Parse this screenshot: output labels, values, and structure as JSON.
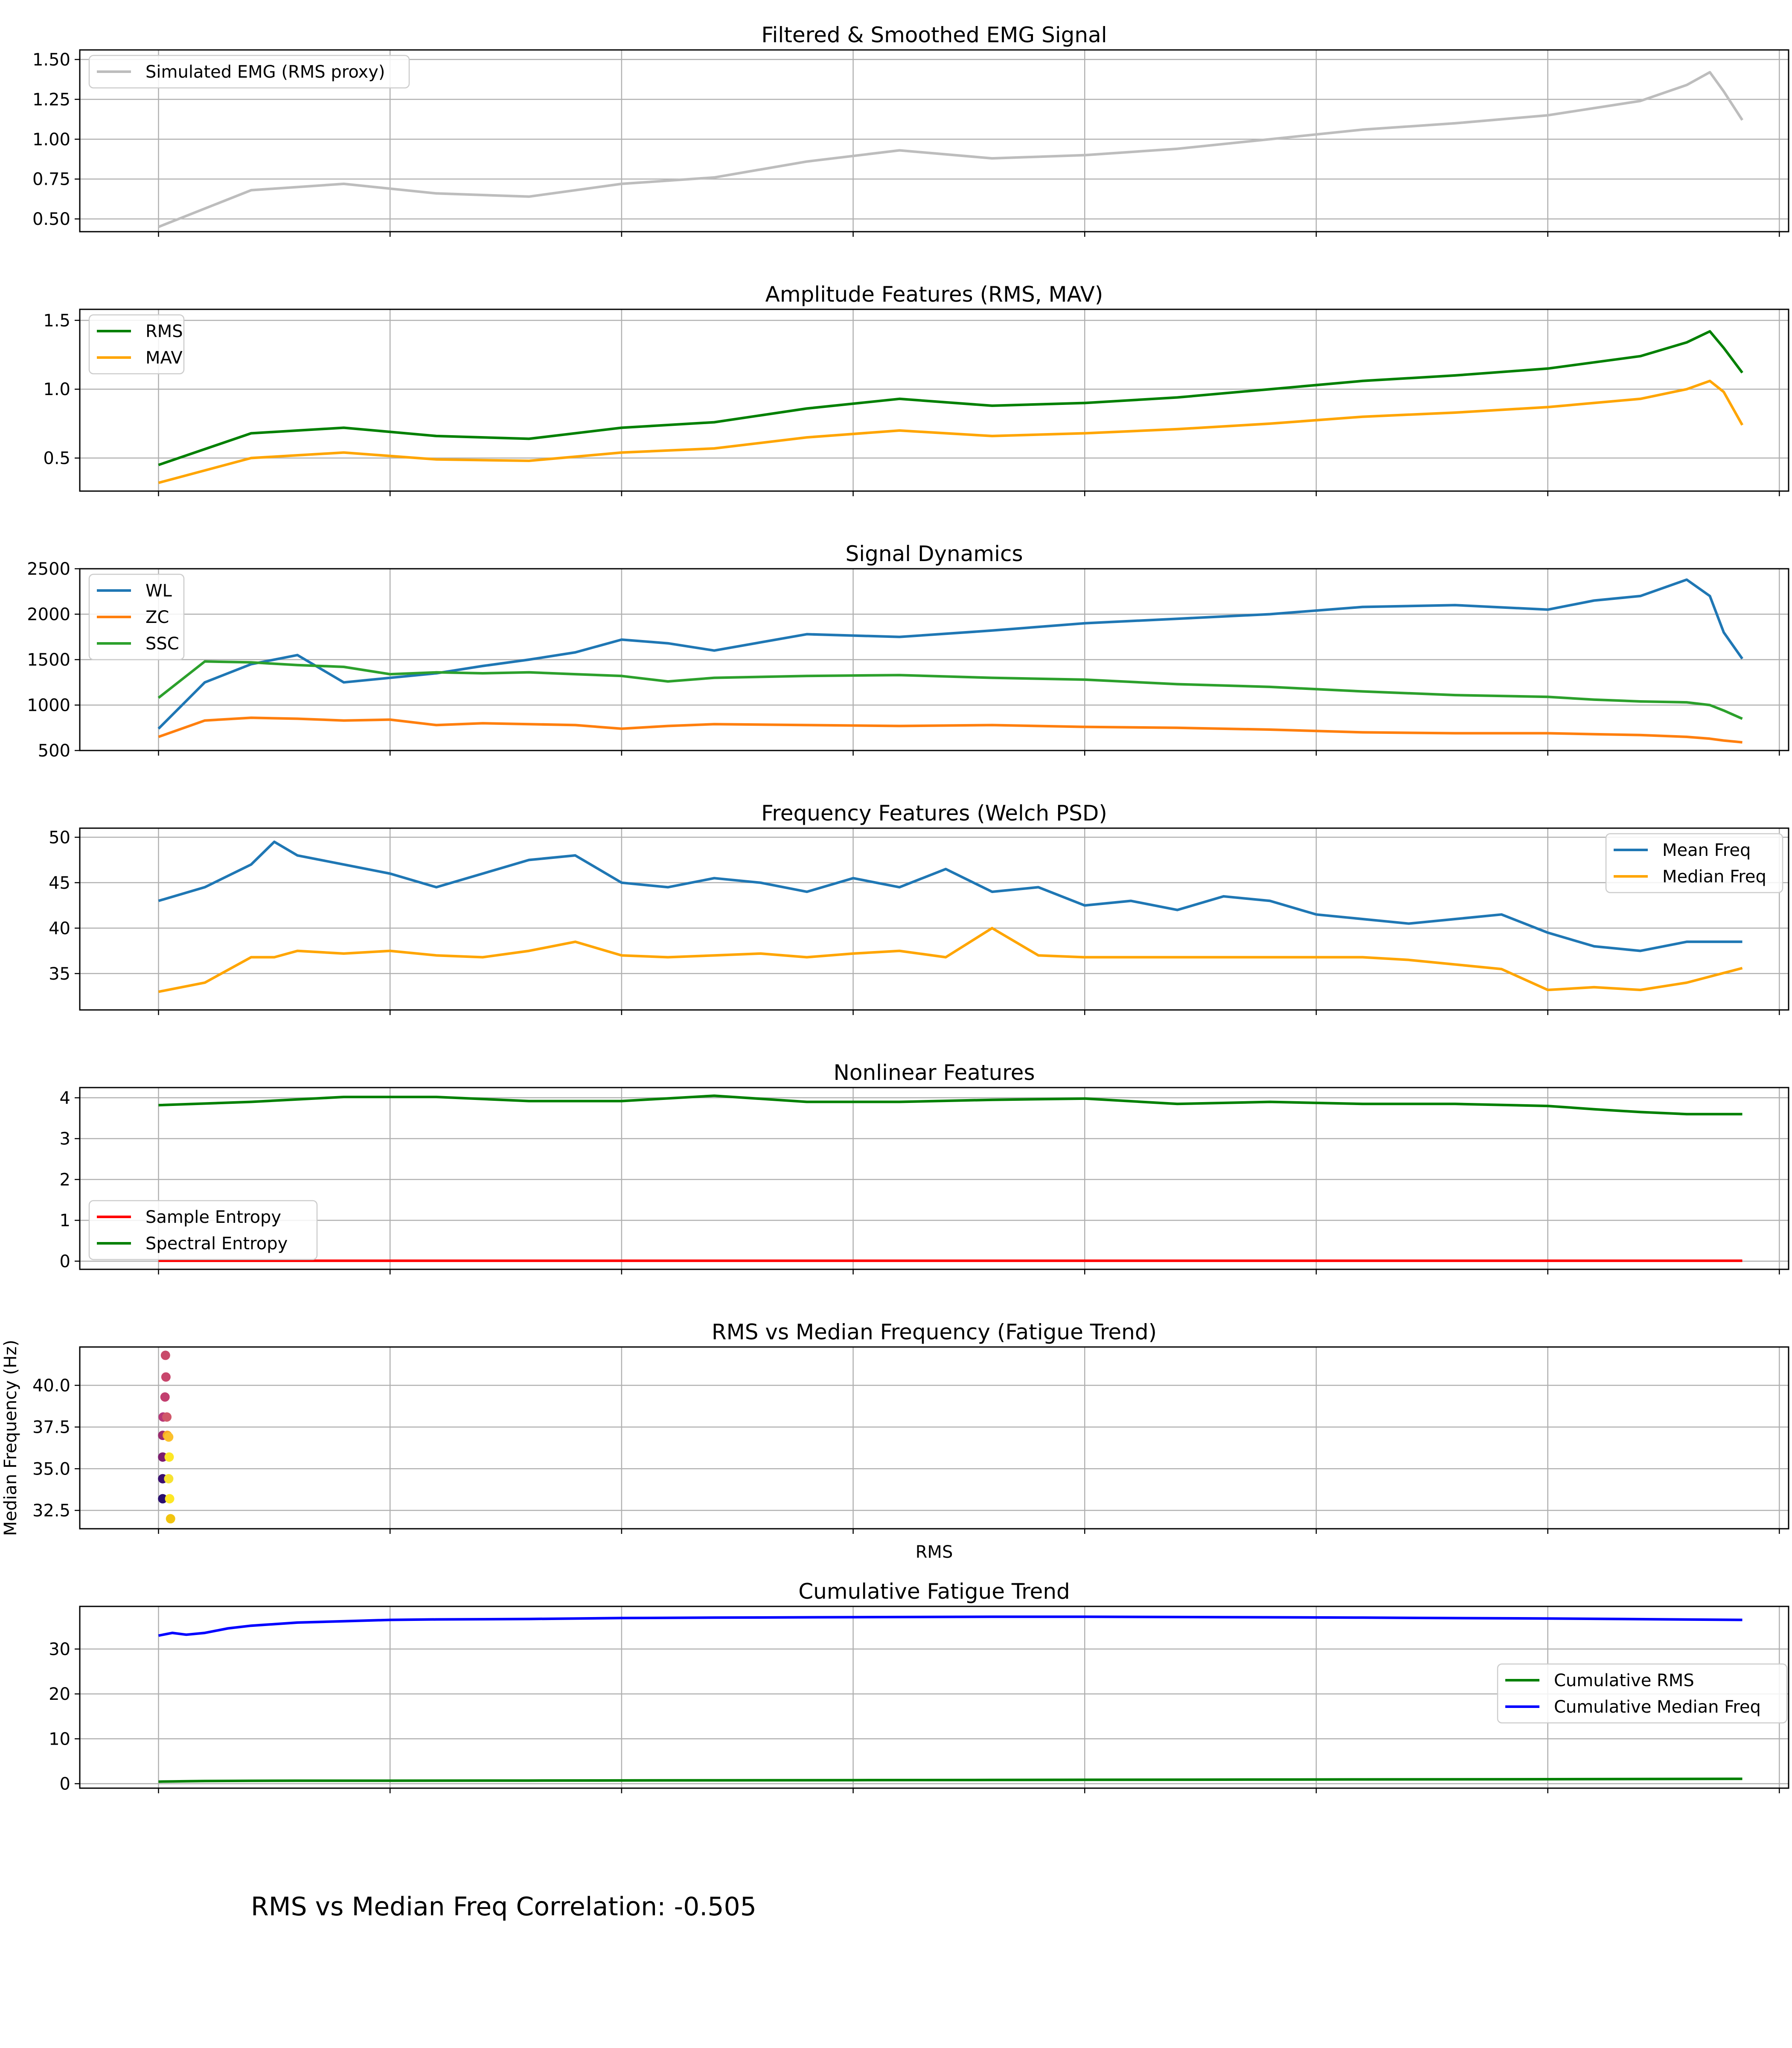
{
  "chart_data": [
    {
      "type": "line",
      "title": "Filtered & Smoothed EMG Signal",
      "ylim": [
        0.42,
        1.56
      ],
      "yticks": [
        0.5,
        0.75,
        1.0,
        1.25,
        1.5
      ],
      "ytick_labels": [
        "0.50",
        "0.75",
        "1.00",
        "1.25",
        "1.50"
      ],
      "xlim": [
        -17,
        352
      ],
      "x_tick_values": [
        0,
        50,
        100,
        150,
        200,
        250,
        300,
        350
      ],
      "x_tick_labels_visible": false,
      "grid": true,
      "legend": "top-left",
      "x": [
        0,
        20,
        40,
        60,
        80,
        100,
        120,
        140,
        160,
        180,
        200,
        220,
        240,
        260,
        280,
        300,
        320,
        330,
        335,
        338,
        342
      ],
      "series": [
        {
          "name": "Simulated EMG (RMS proxy)",
          "color": "#bdbdbd",
          "values": [
            0.45,
            0.68,
            0.72,
            0.66,
            0.64,
            0.72,
            0.76,
            0.86,
            0.93,
            0.88,
            0.9,
            0.94,
            1.0,
            1.06,
            1.1,
            1.15,
            1.24,
            1.34,
            1.42,
            1.3,
            1.12
          ]
        }
      ]
    },
    {
      "type": "line",
      "title": "Amplitude Features (RMS, MAV)",
      "ylim": [
        0.26,
        1.58
      ],
      "yticks": [
        0.5,
        1.0,
        1.5
      ],
      "ytick_labels": [
        "0.5",
        "1.0",
        "1.5"
      ],
      "xlim": [
        -17,
        352
      ],
      "x_tick_values": [
        0,
        50,
        100,
        150,
        200,
        250,
        300,
        350
      ],
      "x_tick_labels_visible": false,
      "grid": true,
      "legend": "top-left",
      "x": [
        0,
        20,
        40,
        60,
        80,
        100,
        120,
        140,
        160,
        180,
        200,
        220,
        240,
        260,
        280,
        300,
        320,
        330,
        335,
        338,
        342
      ],
      "series": [
        {
          "name": "RMS",
          "color": "#008000",
          "values": [
            0.45,
            0.68,
            0.72,
            0.66,
            0.64,
            0.72,
            0.76,
            0.86,
            0.93,
            0.88,
            0.9,
            0.94,
            1.0,
            1.06,
            1.1,
            1.15,
            1.24,
            1.34,
            1.42,
            1.3,
            1.12
          ]
        },
        {
          "name": "MAV",
          "color": "#ffa500",
          "values": [
            0.32,
            0.5,
            0.54,
            0.49,
            0.48,
            0.54,
            0.57,
            0.65,
            0.7,
            0.66,
            0.68,
            0.71,
            0.75,
            0.8,
            0.83,
            0.87,
            0.93,
            1.0,
            1.06,
            0.98,
            0.74
          ]
        }
      ]
    },
    {
      "type": "line",
      "title": "Signal Dynamics",
      "ylim": [
        500,
        2500
      ],
      "yticks": [
        500,
        1000,
        1500,
        2000,
        2500
      ],
      "ytick_labels": [
        "500",
        "1000",
        "1500",
        "2000",
        "2500"
      ],
      "xlim": [
        -17,
        352
      ],
      "x_tick_values": [
        0,
        50,
        100,
        150,
        200,
        250,
        300,
        350
      ],
      "x_tick_labels_visible": false,
      "grid": true,
      "legend": "top-left",
      "x": [
        0,
        10,
        20,
        30,
        40,
        50,
        60,
        70,
        80,
        90,
        100,
        110,
        120,
        140,
        160,
        180,
        200,
        220,
        240,
        260,
        280,
        300,
        310,
        320,
        330,
        335,
        338,
        342
      ],
      "series": [
        {
          "name": "WL",
          "color": "#1f77b4",
          "values": [
            740,
            1250,
            1450,
            1550,
            1250,
            1300,
            1350,
            1430,
            1500,
            1580,
            1720,
            1680,
            1600,
            1780,
            1750,
            1820,
            1900,
            1950,
            2000,
            2080,
            2100,
            2050,
            2150,
            2200,
            2380,
            2200,
            1800,
            1510
          ]
        },
        {
          "name": "ZC",
          "color": "#ff7f0e",
          "values": [
            650,
            830,
            860,
            850,
            830,
            840,
            780,
            800,
            790,
            780,
            740,
            770,
            790,
            780,
            770,
            780,
            760,
            750,
            730,
            700,
            690,
            690,
            680,
            670,
            650,
            630,
            610,
            590
          ]
        },
        {
          "name": "SSC",
          "color": "#2ca02c",
          "values": [
            1080,
            1480,
            1470,
            1440,
            1420,
            1340,
            1360,
            1350,
            1360,
            1340,
            1320,
            1260,
            1300,
            1320,
            1330,
            1300,
            1280,
            1230,
            1200,
            1150,
            1110,
            1090,
            1060,
            1040,
            1030,
            1000,
            940,
            850
          ]
        }
      ]
    },
    {
      "type": "line",
      "title": "Frequency Features (Welch PSD)",
      "ylim": [
        31,
        51
      ],
      "yticks": [
        35,
        40,
        45,
        50
      ],
      "ytick_labels": [
        "35",
        "40",
        "45",
        "50"
      ],
      "xlim": [
        -17,
        352
      ],
      "x_tick_values": [
        0,
        50,
        100,
        150,
        200,
        250,
        300,
        350
      ],
      "x_tick_labels_visible": false,
      "grid": true,
      "legend": "top-right",
      "x": [
        0,
        10,
        20,
        25,
        30,
        40,
        50,
        60,
        70,
        80,
        90,
        100,
        110,
        120,
        130,
        140,
        150,
        160,
        170,
        180,
        190,
        200,
        210,
        220,
        230,
        240,
        250,
        260,
        270,
        280,
        290,
        300,
        310,
        320,
        330,
        342
      ],
      "series": [
        {
          "name": "Mean Freq",
          "color": "#1f77b4",
          "values": [
            43,
            44.5,
            47,
            49.5,
            48,
            47,
            46,
            44.5,
            46,
            47.5,
            48,
            45,
            44.5,
            45.5,
            45,
            44,
            45.5,
            44.5,
            46.5,
            44,
            44.5,
            42.5,
            43,
            42,
            43.5,
            43,
            41.5,
            41,
            40.5,
            41,
            41.5,
            39.5,
            38,
            37.5,
            38.5,
            38.5
          ]
        },
        {
          "name": "Median Freq",
          "color": "#ffa500",
          "values": [
            33,
            34,
            36.8,
            36.8,
            37.5,
            37.2,
            37.5,
            37,
            36.8,
            37.5,
            38.5,
            37,
            36.8,
            37,
            37.2,
            36.8,
            37.2,
            37.5,
            36.8,
            40,
            37,
            36.8,
            36.8,
            36.8,
            36.8,
            36.8,
            36.8,
            36.8,
            36.5,
            36,
            35.5,
            33.2,
            33.5,
            33.2,
            34,
            35.6
          ]
        }
      ]
    },
    {
      "type": "line",
      "title": "Nonlinear Features",
      "ylim": [
        -0.2,
        4.25
      ],
      "yticks": [
        0,
        1,
        2,
        3,
        4
      ],
      "ytick_labels": [
        "0",
        "1",
        "2",
        "3",
        "4"
      ],
      "xlim": [
        -17,
        352
      ],
      "x_tick_values": [
        0,
        50,
        100,
        150,
        200,
        250,
        300,
        350
      ],
      "x_tick_labels_visible": false,
      "grid": true,
      "legend": "bottom-left",
      "x": [
        0,
        20,
        40,
        60,
        80,
        100,
        120,
        140,
        160,
        180,
        200,
        220,
        240,
        260,
        280,
        300,
        310,
        320,
        330,
        342
      ],
      "series": [
        {
          "name": "Sample Entropy",
          "color": "#ff0000",
          "values": [
            0.01,
            0.01,
            0.01,
            0.01,
            0.01,
            0.01,
            0.01,
            0.01,
            0.01,
            0.01,
            0.01,
            0.01,
            0.01,
            0.01,
            0.01,
            0.01,
            0.01,
            0.01,
            0.01,
            0.01
          ]
        },
        {
          "name": "Spectral Entropy",
          "color": "#008000",
          "values": [
            3.82,
            3.9,
            4.02,
            4.02,
            3.92,
            3.92,
            4.05,
            3.9,
            3.9,
            3.95,
            3.98,
            3.85,
            3.9,
            3.85,
            3.85,
            3.8,
            3.72,
            3.65,
            3.6,
            3.6
          ]
        }
      ]
    },
    {
      "type": "scatter",
      "title": "RMS vs Median Frequency (Fatigue Trend)",
      "xlabel": "RMS",
      "ylabel": "Median Frequency (Hz)",
      "ylim": [
        31.4,
        42.3
      ],
      "yticks": [
        32.5,
        35.0,
        37.5,
        40.0
      ],
      "ytick_labels": [
        "32.5",
        "35.0",
        "37.5",
        "40.0"
      ],
      "xlim": [
        -17,
        352
      ],
      "x_tick_values": [
        0,
        50,
        100,
        150,
        200,
        250,
        300,
        350
      ],
      "x_tick_labels_visible": false,
      "grid": true,
      "points": [
        {
          "x": 0.9,
          "y": 33.2,
          "c": "#2a0f6e"
        },
        {
          "x": 0.9,
          "y": 34.4,
          "c": "#3b0f70"
        },
        {
          "x": 0.9,
          "y": 35.7,
          "c": "#7c1d6f"
        },
        {
          "x": 0.9,
          "y": 37.0,
          "c": "#9c2b6e"
        },
        {
          "x": 1.0,
          "y": 38.1,
          "c": "#b73779"
        },
        {
          "x": 1.4,
          "y": 39.3,
          "c": "#c23f6f"
        },
        {
          "x": 1.6,
          "y": 40.5,
          "c": "#c8466c"
        },
        {
          "x": 1.5,
          "y": 41.8,
          "c": "#c94a6a"
        },
        {
          "x": 1.8,
          "y": 38.1,
          "c": "#d0586a"
        },
        {
          "x": 1.9,
          "y": 37.0,
          "c": "#f9a825"
        },
        {
          "x": 2.2,
          "y": 36.9,
          "c": "#fbc02d"
        },
        {
          "x": 2.3,
          "y": 35.7,
          "c": "#fde725"
        },
        {
          "x": 2.2,
          "y": 34.4,
          "c": "#f6e232"
        },
        {
          "x": 2.4,
          "y": 33.2,
          "c": "#fde725"
        },
        {
          "x": 2.6,
          "y": 32.0,
          "c": "#f1c40f"
        }
      ]
    },
    {
      "type": "line",
      "title": "Cumulative Fatigue Trend",
      "ylim": [
        -1,
        39.5
      ],
      "yticks": [
        0,
        10,
        20,
        30
      ],
      "ytick_labels": [
        "0",
        "10",
        "20",
        "30"
      ],
      "xlim": [
        -17,
        352
      ],
      "x_tick_values": [
        0,
        50,
        100,
        150,
        200,
        250,
        300,
        350
      ],
      "x_tick_labels_visible": false,
      "grid": true,
      "legend": "center-right",
      "x": [
        0,
        3,
        6,
        10,
        15,
        20,
        30,
        40,
        50,
        60,
        80,
        100,
        120,
        150,
        180,
        200,
        230,
        260,
        300,
        342
      ],
      "series": [
        {
          "name": "Cumulative RMS",
          "color": "#008000",
          "values": [
            0.45,
            0.5,
            0.55,
            0.6,
            0.62,
            0.64,
            0.66,
            0.66,
            0.66,
            0.67,
            0.69,
            0.72,
            0.75,
            0.79,
            0.83,
            0.86,
            0.9,
            0.95,
            1.0,
            1.08
          ]
        },
        {
          "name": "Cumulative Median Freq",
          "color": "#0000ff",
          "values": [
            33,
            33.6,
            33.2,
            33.6,
            34.6,
            35.2,
            35.9,
            36.2,
            36.5,
            36.6,
            36.7,
            36.9,
            37.0,
            37.1,
            37.2,
            37.2,
            37.1,
            37.0,
            36.8,
            36.5
          ]
        }
      ]
    }
  ],
  "annotation": {
    "correlation_text": "RMS vs Median Freq Correlation: -0.505"
  }
}
